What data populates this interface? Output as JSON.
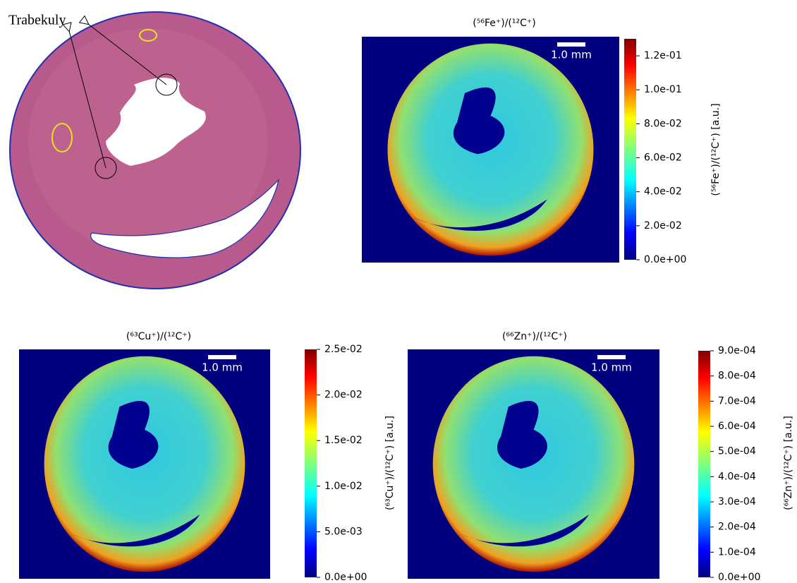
{
  "histology": {
    "annotation": "Trabekuly"
  },
  "chart_data": [
    {
      "type": "heatmap",
      "title": "(⁵⁶Fe⁺)/(¹²C⁺)",
      "colorbar_label": "(⁵⁶Fe⁺)/(¹²C⁺) [a.u.]",
      "scale_bar": "1.0 mm",
      "colormap": "jet",
      "clim": [
        0,
        0.13
      ],
      "cticks": [
        {
          "value": 0,
          "label": "0.0e+00"
        },
        {
          "value": 0.02,
          "label": "2.0e-02"
        },
        {
          "value": 0.04,
          "label": "4.0e-02"
        },
        {
          "value": 0.06,
          "label": "6.0e-02"
        },
        {
          "value": 0.08,
          "label": "8.0e-02"
        },
        {
          "value": 0.1,
          "label": "1.0e-01"
        },
        {
          "value": 0.12,
          "label": "1.2e-01"
        }
      ]
    },
    {
      "type": "heatmap",
      "title": "(⁶³Cu⁺)/(¹²C⁺)",
      "colorbar_label": "(⁶³Cu⁺)/(¹²C⁺) [a.u.]",
      "scale_bar": "1.0 mm",
      "colormap": "jet",
      "clim": [
        0,
        0.025
      ],
      "cticks": [
        {
          "value": 0,
          "label": "0.0e+00"
        },
        {
          "value": 0.005,
          "label": "5.0e-03"
        },
        {
          "value": 0.01,
          "label": "1.0e-02"
        },
        {
          "value": 0.015,
          "label": "1.5e-02"
        },
        {
          "value": 0.02,
          "label": "2.0e-02"
        },
        {
          "value": 0.025,
          "label": "2.5e-02"
        }
      ]
    },
    {
      "type": "heatmap",
      "title": "(⁶⁶Zn⁺)/(¹²C⁺)",
      "colorbar_label": "(⁶⁶Zn⁺)/(¹²C⁺) [a.u.]",
      "scale_bar": "1.0 mm",
      "colormap": "jet",
      "clim": [
        0,
        0.0009
      ],
      "cticks": [
        {
          "value": 0,
          "label": "0.0e+00"
        },
        {
          "value": 0.0001,
          "label": "1.0e-04"
        },
        {
          "value": 0.0002,
          "label": "2.0e-04"
        },
        {
          "value": 0.0003,
          "label": "3.0e-04"
        },
        {
          "value": 0.0004,
          "label": "4.0e-04"
        },
        {
          "value": 0.0005,
          "label": "5.0e-04"
        },
        {
          "value": 0.0006,
          "label": "6.0e-04"
        },
        {
          "value": 0.0007,
          "label": "7.0e-04"
        },
        {
          "value": 0.0008,
          "label": "8.0e-04"
        },
        {
          "value": 0.0009,
          "label": "9.0e-04"
        }
      ]
    }
  ]
}
